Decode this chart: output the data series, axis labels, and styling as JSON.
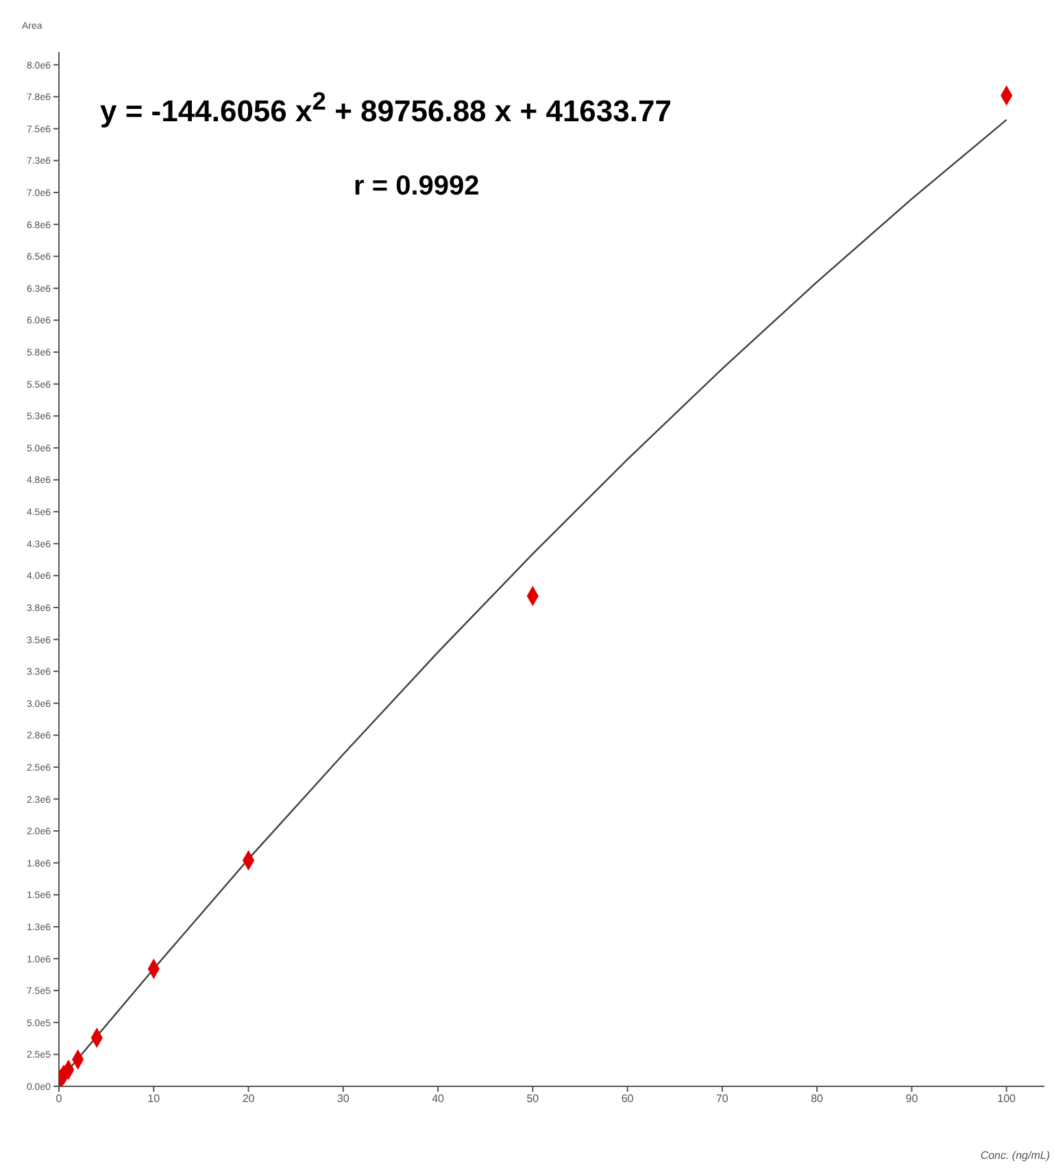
{
  "chart_data": {
    "type": "scatter",
    "ylabel": "Area",
    "xlabel": "Conc. (ng/mL)",
    "annotations": [
      "y = -144.6056 x$^{2}$ + 89756.88 x + 41633.77",
      "r = 0.9992"
    ],
    "xlim": [
      0,
      104
    ],
    "xticks": [
      0,
      10,
      20,
      30,
      40,
      50,
      60,
      70,
      80,
      90,
      100
    ],
    "ylim": [
      0,
      8100000
    ],
    "yticks": [
      {
        "value": 0,
        "label": "0.0e0"
      },
      {
        "value": 250000,
        "label": "2.5e5"
      },
      {
        "value": 500000,
        "label": "5.0e5"
      },
      {
        "value": 750000,
        "label": "7.5e5"
      },
      {
        "value": 1000000,
        "label": "1.0e6"
      },
      {
        "value": 1250000,
        "label": "1.3e6"
      },
      {
        "value": 1500000,
        "label": "1.5e6"
      },
      {
        "value": 1750000,
        "label": "1.8e6"
      },
      {
        "value": 2000000,
        "label": "2.0e6"
      },
      {
        "value": 2250000,
        "label": "2.3e6"
      },
      {
        "value": 2500000,
        "label": "2.5e6"
      },
      {
        "value": 2750000,
        "label": "2.8e6"
      },
      {
        "value": 3000000,
        "label": "3.0e6"
      },
      {
        "value": 3250000,
        "label": "3.3e6"
      },
      {
        "value": 3500000,
        "label": "3.5e6"
      },
      {
        "value": 3750000,
        "label": "3.8e6"
      },
      {
        "value": 4000000,
        "label": "4.0e6"
      },
      {
        "value": 4250000,
        "label": "4.3e6"
      },
      {
        "value": 4500000,
        "label": "4.5e6"
      },
      {
        "value": 4750000,
        "label": "4.8e6"
      },
      {
        "value": 5000000,
        "label": "5.0e6"
      },
      {
        "value": 5250000,
        "label": "5.3e6"
      },
      {
        "value": 5500000,
        "label": "5.5e6"
      },
      {
        "value": 5750000,
        "label": "5.8e6"
      },
      {
        "value": 6000000,
        "label": "6.0e6"
      },
      {
        "value": 6250000,
        "label": "6.3e6"
      },
      {
        "value": 6500000,
        "label": "6.5e6"
      },
      {
        "value": 6750000,
        "label": "6.8e6"
      },
      {
        "value": 7000000,
        "label": "7.0e6"
      },
      {
        "value": 7250000,
        "label": "7.3e6"
      },
      {
        "value": 7500000,
        "label": "7.5e6"
      },
      {
        "value": 7750000,
        "label": "7.8e6"
      },
      {
        "value": 8000000,
        "label": "8.0e6"
      }
    ],
    "series": [
      {
        "marker": "diamond",
        "color": "#e00000",
        "x": [
          0.2,
          0.5,
          1,
          2,
          4,
          10,
          20,
          50,
          100
        ],
        "values": [
          60000,
          90000,
          130000,
          210000,
          380000,
          920000,
          1770000,
          3840000,
          7760000
        ]
      },
      {
        "type": "line",
        "marker": "none",
        "color": "#404040",
        "x": [
          0,
          10,
          20,
          30,
          40,
          50,
          60,
          70,
          80,
          90,
          100
        ],
        "values": [
          40000,
          920000,
          1780000,
          2600000,
          3400000,
          4170000,
          4910000,
          5620000,
          6300000,
          6950000,
          7570000
        ]
      }
    ],
    "grid": false,
    "legend": false
  }
}
